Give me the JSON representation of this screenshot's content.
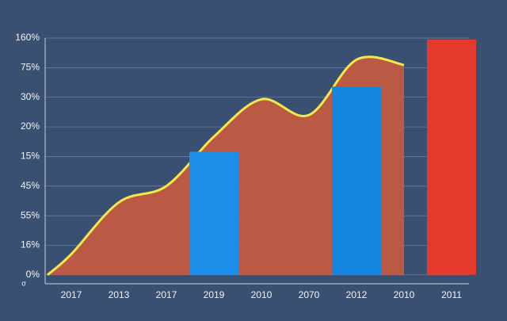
{
  "chart_data": {
    "type": "bar-area",
    "categories": [
      "2017",
      "2013",
      "2017",
      "2019",
      "2010",
      "2070",
      "2012",
      "2010",
      "2011"
    ],
    "ylim": [
      -0.3,
      8
    ],
    "yticks": [
      {
        "value": 0,
        "label": "0%"
      },
      {
        "value": 1,
        "label": "16%"
      },
      {
        "value": 2,
        "label": "55%"
      },
      {
        "value": 3,
        "label": "45%"
      },
      {
        "value": 4,
        "label": "15%"
      },
      {
        "value": 5,
        "label": "20%"
      },
      {
        "value": 6,
        "label": "30%"
      },
      {
        "value": 7,
        "label": "75%"
      },
      {
        "value": 8,
        "label": "160%"
      }
    ],
    "grid": true,
    "annotation": "σ",
    "area": {
      "color": "#c65a40",
      "line_color": "#f2e84a",
      "values": [
        0.7,
        2.45,
        3.0,
        4.67,
        5.93,
        5.4,
        7.27,
        7.09,
        null
      ]
    },
    "bars": {
      "colors": [
        null,
        null,
        null,
        "#1a8ee8",
        null,
        null,
        "#1486df",
        null,
        "#e43a2e"
      ],
      "values": [
        null,
        null,
        null,
        4.16,
        null,
        null,
        6.36,
        null,
        7.95
      ]
    }
  }
}
